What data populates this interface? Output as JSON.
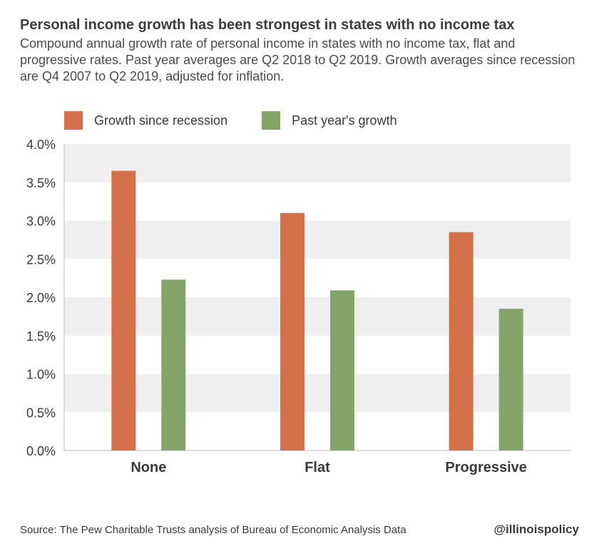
{
  "header": {
    "title": "Personal income growth has been strongest in states with no income tax",
    "subtitle": "Compound annual growth rate of personal income in states with no income tax, flat and progressive rates. Past year averages are Q2 2018 to Q2 2019. Growth averages since recession are Q4 2007 to Q2 2019, adjusted for inflation."
  },
  "footer": {
    "source": "Source: The Pew Charitable Trusts analysis of Bureau of Economic Analysis Data",
    "handle": "@illinoispolicy"
  },
  "chart_data": {
    "type": "bar",
    "categories": [
      "None",
      "Flat",
      "Progressive"
    ],
    "series": [
      {
        "name": "Growth since recession",
        "color": "#d4704a",
        "values": [
          3.65,
          3.1,
          2.85
        ]
      },
      {
        "name": "Past year's growth",
        "color": "#84a46a",
        "values": [
          2.23,
          2.09,
          1.85
        ]
      }
    ],
    "ylim": [
      0,
      4.0
    ],
    "yticks": [
      "0.0%",
      "0.5%",
      "1.0%",
      "1.5%",
      "2.0%",
      "2.5%",
      "3.0%",
      "3.5%",
      "4.0%"
    ],
    "ytick_values": [
      0,
      0.5,
      1.0,
      1.5,
      2.0,
      2.5,
      3.0,
      3.5,
      4.0
    ],
    "grid": "alternating horizontal bands",
    "band_color": "#efefef",
    "legend_position": "top-left"
  }
}
